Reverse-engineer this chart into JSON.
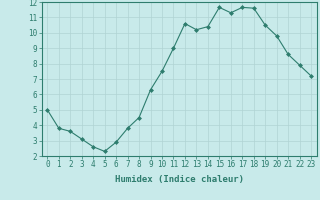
{
  "x": [
    0,
    1,
    2,
    3,
    4,
    5,
    6,
    7,
    8,
    9,
    10,
    11,
    12,
    13,
    14,
    15,
    16,
    17,
    18,
    19,
    20,
    21,
    22,
    23
  ],
  "y": [
    5.0,
    3.8,
    3.6,
    3.1,
    2.6,
    2.3,
    2.9,
    3.8,
    4.5,
    6.3,
    7.5,
    9.0,
    10.6,
    10.2,
    10.4,
    11.65,
    11.3,
    11.65,
    11.6,
    10.5,
    9.8,
    8.6,
    7.9,
    7.2
  ],
  "line_color": "#2e7d6e",
  "marker": "D",
  "marker_size": 2.0,
  "bg_color": "#c8eaea",
  "grid_color": "#b0d4d4",
  "xlabel": "Humidex (Indice chaleur)",
  "ylim": [
    2,
    12
  ],
  "xlim": [
    -0.5,
    23.5
  ],
  "yticks": [
    2,
    3,
    4,
    5,
    6,
    7,
    8,
    9,
    10,
    11,
    12
  ],
  "xticks": [
    0,
    1,
    2,
    3,
    4,
    5,
    6,
    7,
    8,
    9,
    10,
    11,
    12,
    13,
    14,
    15,
    16,
    17,
    18,
    19,
    20,
    21,
    22,
    23
  ],
  "tick_color": "#2e7d6e",
  "label_fontsize": 6.5,
  "tick_fontsize": 5.5,
  "spine_color": "#2e7d6e",
  "linewidth": 0.8
}
